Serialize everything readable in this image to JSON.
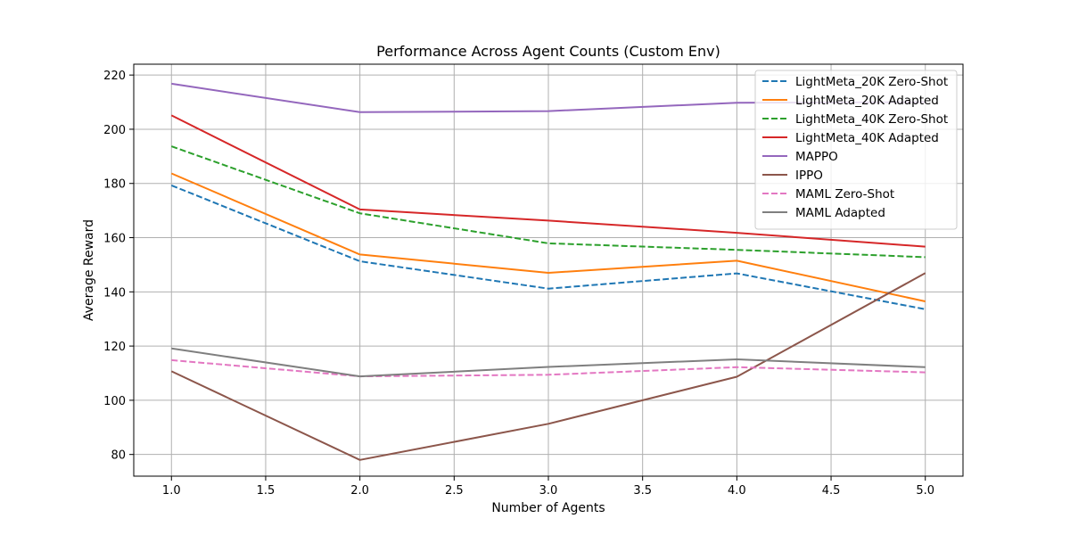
{
  "chart_data": {
    "type": "line",
    "title": "Performance Across Agent Counts (Custom Env)",
    "xlabel": "Number of Agents",
    "ylabel": "Average Reward",
    "xlim": [
      0.8,
      5.2
    ],
    "ylim": [
      72,
      224
    ],
    "xticks": [
      1.0,
      1.5,
      2.0,
      2.5,
      3.0,
      3.5,
      4.0,
      4.5,
      5.0
    ],
    "xtick_labels": [
      "1.0",
      "1.5",
      "2.0",
      "2.5",
      "3.0",
      "3.5",
      "4.0",
      "4.5",
      "5.0"
    ],
    "yticks": [
      80,
      100,
      120,
      140,
      160,
      180,
      200,
      220
    ],
    "ytick_labels": [
      "80",
      "100",
      "120",
      "140",
      "160",
      "180",
      "200",
      "220"
    ],
    "grid": true,
    "legend_position": "top-right",
    "x": [
      1,
      2,
      3,
      4,
      5
    ],
    "series": [
      {
        "name": "LightMeta_20K Zero-Shot",
        "values": [
          179.3,
          151.3,
          141.2,
          146.8,
          133.6
        ],
        "color": "#1f77b4",
        "dashed": true
      },
      {
        "name": "LightMeta_20K Adapted",
        "values": [
          183.7,
          153.8,
          147.0,
          151.5,
          136.5
        ],
        "color": "#ff7f0e",
        "dashed": false
      },
      {
        "name": "LightMeta_40K Zero-Shot",
        "values": [
          193.7,
          169.0,
          157.9,
          155.5,
          152.8
        ],
        "color": "#2ca02c",
        "dashed": true
      },
      {
        "name": "LightMeta_40K Adapted",
        "values": [
          205.1,
          170.4,
          166.3,
          161.8,
          156.7
        ],
        "color": "#d62728",
        "dashed": false
      },
      {
        "name": "MAPPO",
        "values": [
          216.8,
          206.3,
          206.7,
          209.8,
          210.0
        ],
        "color": "#9467bd",
        "dashed": false
      },
      {
        "name": "IPPO",
        "values": [
          110.7,
          78.0,
          91.3,
          108.7,
          146.9
        ],
        "color": "#8c564b",
        "dashed": false
      },
      {
        "name": "MAML Zero-Shot",
        "values": [
          114.8,
          108.8,
          109.4,
          112.2,
          110.3
        ],
        "color": "#e377c2",
        "dashed": true
      },
      {
        "name": "MAML Adapted",
        "values": [
          119.1,
          108.8,
          112.3,
          115.1,
          112.2
        ],
        "color": "#7f7f7f",
        "dashed": false
      }
    ]
  }
}
